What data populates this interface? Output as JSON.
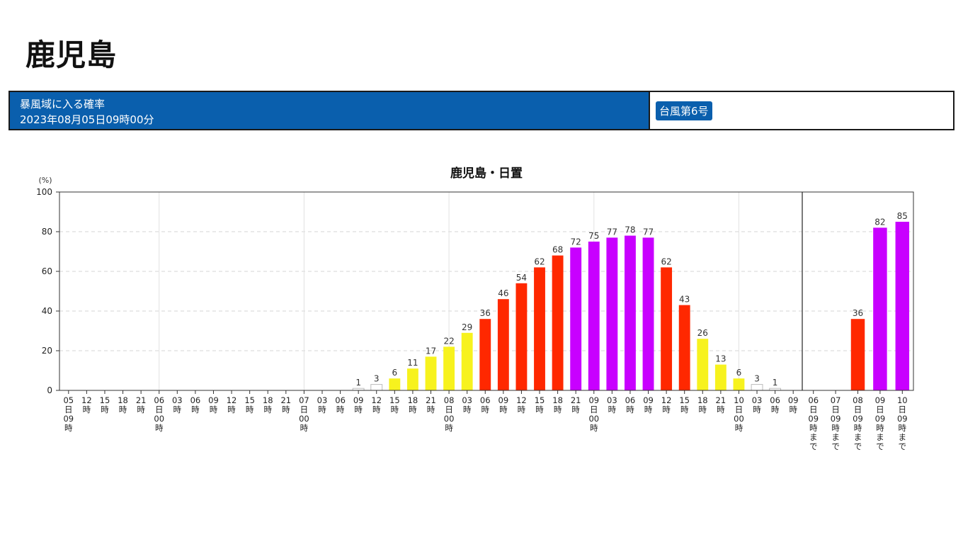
{
  "page": {
    "title": "鹿児島"
  },
  "info_bar": {
    "label": "暴風域に入る確率",
    "datetime": "2023年08月05日09時00分",
    "typhoon": "台風第6号"
  },
  "colors": {
    "white": "#ffffff",
    "yellow": "#f7f21e",
    "red": "#ff2800",
    "purple": "#c800ff",
    "brand_blue": "#0a5fad"
  },
  "chart_data": {
    "type": "bar",
    "title": "鹿児島・日置",
    "ylabel": "(%)",
    "ylim": [
      0,
      100
    ],
    "yticks": [
      0,
      20,
      40,
      60,
      80,
      100
    ],
    "grid": true,
    "series": [
      {
        "categories": [
          [
            "05",
            "日",
            "09",
            "時"
          ],
          [
            "12",
            "時"
          ],
          [
            "15",
            "時"
          ],
          [
            "18",
            "時"
          ],
          [
            "21",
            "時"
          ],
          [
            "06",
            "日",
            "00",
            "時"
          ],
          [
            "03",
            "時"
          ],
          [
            "06",
            "時"
          ],
          [
            "09",
            "時"
          ],
          [
            "12",
            "時"
          ],
          [
            "15",
            "時"
          ],
          [
            "18",
            "時"
          ],
          [
            "21",
            "時"
          ],
          [
            "07",
            "日",
            "00",
            "時"
          ],
          [
            "03",
            "時"
          ],
          [
            "06",
            "時"
          ],
          [
            "09",
            "時"
          ],
          [
            "12",
            "時"
          ],
          [
            "15",
            "時"
          ],
          [
            "18",
            "時"
          ],
          [
            "21",
            "時"
          ],
          [
            "08",
            "日",
            "00",
            "時"
          ],
          [
            "03",
            "時"
          ],
          [
            "06",
            "時"
          ],
          [
            "09",
            "時"
          ],
          [
            "12",
            "時"
          ],
          [
            "15",
            "時"
          ],
          [
            "18",
            "時"
          ],
          [
            "21",
            "時"
          ],
          [
            "09",
            "日",
            "00",
            "時"
          ],
          [
            "03",
            "時"
          ],
          [
            "06",
            "時"
          ],
          [
            "09",
            "時"
          ],
          [
            "12",
            "時"
          ],
          [
            "15",
            "時"
          ],
          [
            "18",
            "時"
          ],
          [
            "21",
            "時"
          ],
          [
            "10",
            "日",
            "00",
            "時"
          ],
          [
            "03",
            "時"
          ],
          [
            "06",
            "時"
          ],
          [
            "09",
            "時"
          ]
        ],
        "values": [
          null,
          null,
          null,
          null,
          null,
          null,
          null,
          null,
          null,
          null,
          null,
          null,
          null,
          null,
          null,
          null,
          1,
          3,
          6,
          11,
          17,
          22,
          29,
          36,
          46,
          54,
          62,
          68,
          72,
          75,
          77,
          78,
          77,
          62,
          43,
          26,
          13,
          6,
          3,
          1,
          null
        ],
        "colors": [
          "",
          "",
          "",
          "",
          "",
          "",
          "",
          "",
          "",
          "",
          "",
          "",
          "",
          "",
          "",
          "",
          "white",
          "white",
          "yellow",
          "yellow",
          "yellow",
          "yellow",
          "yellow",
          "red",
          "red",
          "red",
          "red",
          "red",
          "purple",
          "purple",
          "purple",
          "purple",
          "purple",
          "red",
          "red",
          "yellow",
          "yellow",
          "yellow",
          "white",
          "white",
          ""
        ]
      },
      {
        "categories": [
          [
            "06",
            "日",
            "09",
            "時",
            "ま",
            "で"
          ],
          [
            "07",
            "日",
            "09",
            "時",
            "ま",
            "で"
          ],
          [
            "08",
            "日",
            "09",
            "時",
            "ま",
            "で"
          ],
          [
            "09",
            "日",
            "09",
            "時",
            "ま",
            "で"
          ],
          [
            "10",
            "日",
            "09",
            "時",
            "ま",
            "で"
          ]
        ],
        "values": [
          null,
          null,
          36,
          82,
          85
        ],
        "colors": [
          "",
          "",
          "red",
          "purple",
          "purple"
        ]
      }
    ]
  }
}
